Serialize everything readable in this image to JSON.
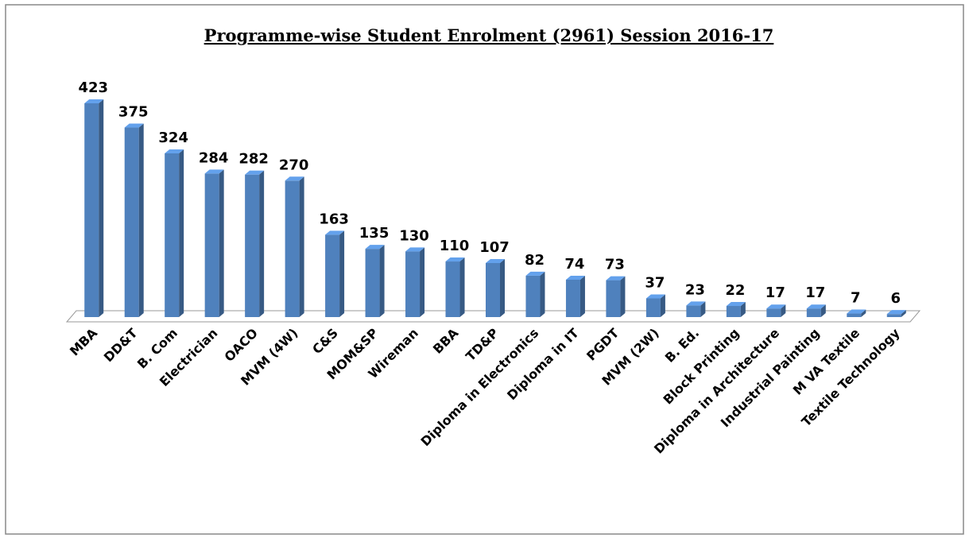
{
  "chart_data": {
    "type": "bar",
    "title": "Programme-wise Student Enrolment (2961)  Session 2016-17",
    "categories": [
      "MBA",
      "DD&T",
      "B. Com",
      "Electrician",
      "OACO",
      "MVM (4W)",
      "C&S",
      "MOM&SP",
      "Wireman",
      "BBA",
      "TD&P",
      "Diploma in Electronics",
      "Diploma in IT",
      "PGDT",
      "MVM (2W)",
      "B. Ed.",
      "Block Printing",
      "Diploma in Architecture",
      "Industrial Painting",
      "M VA Textile",
      "Textile Technology"
    ],
    "values": [
      423,
      375,
      324,
      284,
      282,
      270,
      163,
      135,
      130,
      110,
      107,
      82,
      74,
      73,
      37,
      23,
      22,
      17,
      17,
      7,
      6
    ],
    "color": "#4f81bd"
  }
}
